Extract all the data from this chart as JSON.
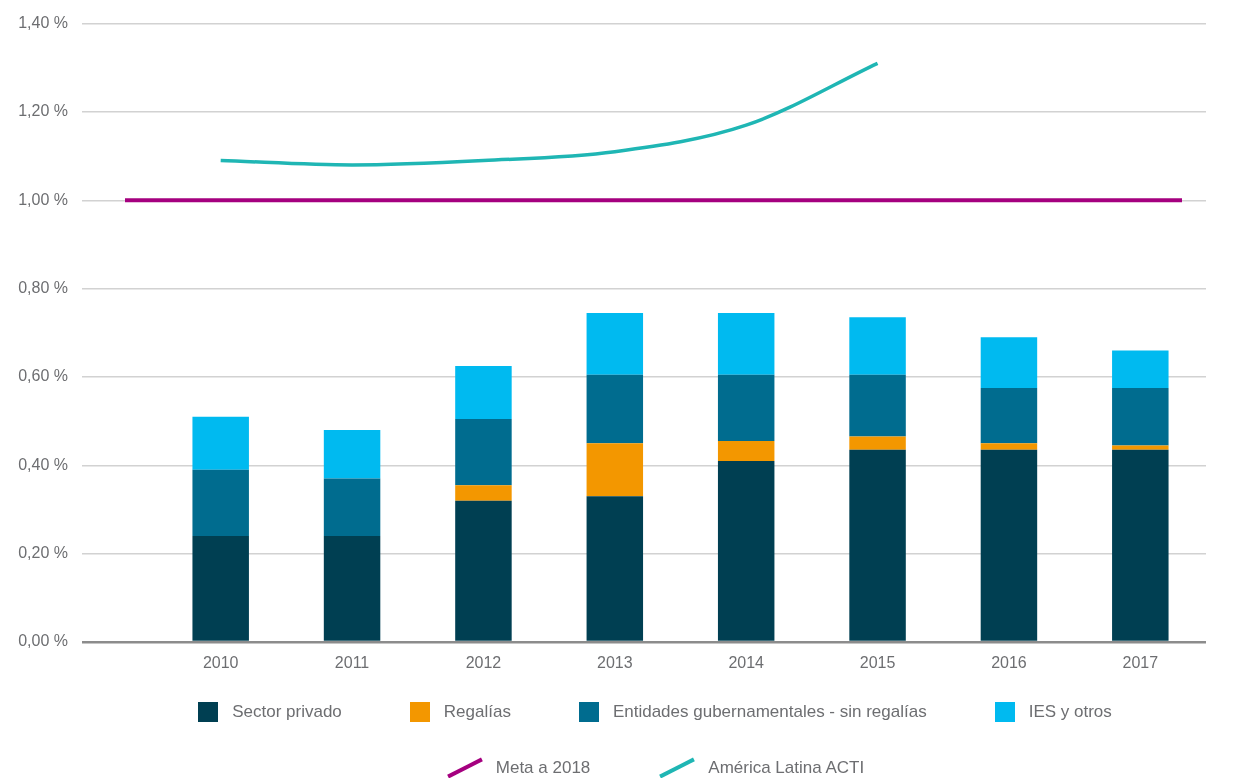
{
  "chart_data": {
    "type": "bar",
    "stacked": true,
    "categories": [
      "2010",
      "2011",
      "2012",
      "2013",
      "2014",
      "2015",
      "2016",
      "2017"
    ],
    "series": [
      {
        "name": "Sector privado",
        "color": "#003f52",
        "values": [
          0.24,
          0.24,
          0.32,
          0.33,
          0.41,
          0.435,
          0.435,
          0.435
        ]
      },
      {
        "name": "Regalías",
        "color": "#f39700",
        "values": [
          0,
          0,
          0.035,
          0.12,
          0.045,
          0.03,
          0.015,
          0.01
        ]
      },
      {
        "name": "Entidades gubernamentales - sin regalías",
        "color": "#006c8f",
        "values": [
          0.15,
          0.13,
          0.15,
          0.155,
          0.15,
          0.14,
          0.125,
          0.13
        ]
      },
      {
        "name": "IES y otros",
        "color": "#00baf0",
        "values": [
          0.12,
          0.11,
          0.12,
          0.14,
          0.14,
          0.13,
          0.115,
          0.085
        ]
      },
      {
        "name": "América Latina ACTI",
        "type": "line",
        "color": "#1fb6b4",
        "values": [
          1.09,
          1.08,
          1.09,
          1.11,
          1.17,
          1.31,
          null,
          null
        ]
      }
    ],
    "ylim": [
      0,
      1.4
    ],
    "yticks": [
      {
        "value": 0,
        "label": "0,00 %"
      },
      {
        "value": 0.2,
        "label": "0,20 %"
      },
      {
        "value": 0.4,
        "label": "0,40 %"
      },
      {
        "value": 0.6,
        "label": "0,60 %"
      },
      {
        "value": 0.8,
        "label": "0,80 %"
      },
      {
        "value": 1,
        "label": "1,00 %"
      },
      {
        "value": 1.2,
        "label": "1,20 %"
      },
      {
        "value": 1.4,
        "label": "1,40 %"
      }
    ],
    "ref_lines": [
      {
        "axis": "y",
        "value": 1,
        "label": "Meta a 2018",
        "color": "#a5007f"
      }
    ],
    "grid": "y",
    "legend": "bottom",
    "marker": "none"
  }
}
